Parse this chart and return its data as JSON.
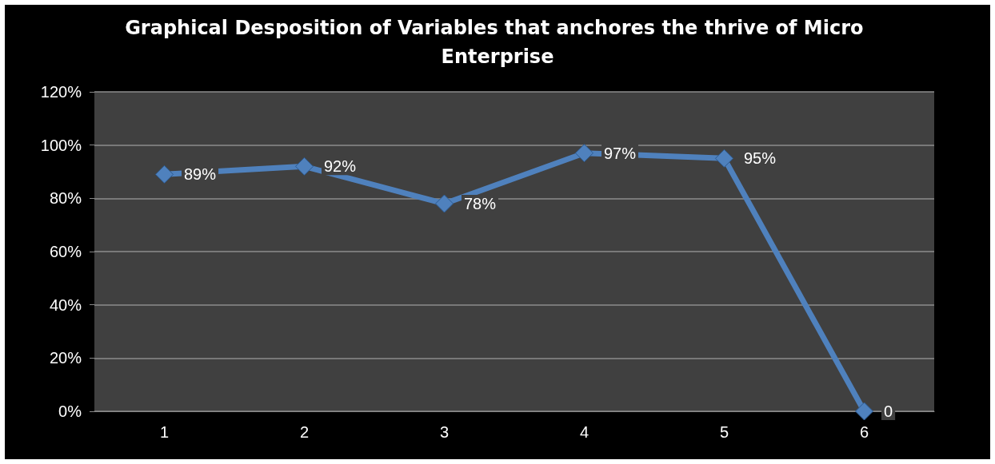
{
  "chart_data": {
    "type": "line",
    "title": "Graphical Desposition of Variables that anchores the thrive of Micro Enterprise",
    "categories": [
      "1",
      "2",
      "3",
      "4",
      "5",
      "6"
    ],
    "series": [
      {
        "color": "#4f81bd",
        "values": [
          89,
          92,
          78,
          97,
          95,
          0
        ],
        "value_labels": [
          "89%",
          "92%",
          "78%",
          "97%",
          "95%",
          "0"
        ]
      }
    ],
    "ylim": [
      0,
      120
    ],
    "yticks": [
      {
        "value": 0,
        "label": "0%"
      },
      {
        "value": 20,
        "label": "20%"
      },
      {
        "value": 40,
        "label": "40%"
      },
      {
        "value": 60,
        "label": "60%"
      },
      {
        "value": 80,
        "label": "80%"
      },
      {
        "value": 100,
        "label": "100%"
      },
      {
        "value": 120,
        "label": "120%"
      }
    ],
    "grid": "y",
    "marker": "diamond",
    "line_style": "solid"
  }
}
